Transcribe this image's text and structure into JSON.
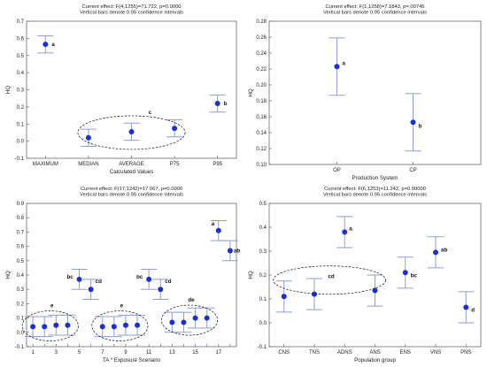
{
  "chart_data": [
    {
      "type": "scatter",
      "error_bars": "vertical, 0.95 confidence intervals",
      "header": [
        "Current effect: F(4,1255)=71.722, p=0.0000",
        "Vertical bars denote 0.95 confidence intervals"
      ],
      "xlabel": "Calculated Values",
      "ylabel": "HQ",
      "categories": [
        "MAXIMUM",
        "MEDIAN",
        "AVERAGE",
        "P75",
        "P95"
      ],
      "yticks": [
        -0.1,
        0.0,
        0.1,
        0.2,
        0.3,
        0.4,
        0.5,
        0.6,
        0.7
      ],
      "ylim": [
        -0.1,
        0.7
      ],
      "grid": false,
      "means": [
        0.565,
        0.02,
        0.055,
        0.075,
        0.22
      ],
      "lower": [
        0.515,
        -0.03,
        0.005,
        0.025,
        0.17
      ],
      "upper": [
        0.615,
        0.07,
        0.105,
        0.125,
        0.27
      ],
      "letters": [
        "a",
        "",
        "",
        "",
        "b"
      ],
      "group_annotations": [
        {
          "label": "c",
          "categories": [
            "MEDIAN",
            "AVERAGE",
            "P75"
          ]
        }
      ]
    },
    {
      "type": "scatter",
      "error_bars": "vertical, 0.95 confidence intervals",
      "header": [
        "Current effect: F(1,1258)=7.1843, p=.00745",
        "Vertical bars denote 0.95 confidence intervals"
      ],
      "xlabel": "Production System",
      "ylabel": "HQ",
      "categories": [
        "OP",
        "CP"
      ],
      "yticks": [
        0.1,
        0.12,
        0.14,
        0.16,
        0.18,
        0.2,
        0.22,
        0.24,
        0.26,
        0.28
      ],
      "ylim": [
        0.1,
        0.28
      ],
      "grid": false,
      "means": [
        0.223,
        0.153
      ],
      "lower": [
        0.187,
        0.117
      ],
      "upper": [
        0.259,
        0.189
      ],
      "letters": [
        "a",
        "b"
      ]
    },
    {
      "type": "scatter",
      "error_bars": "vertical, 0.95 confidence intervals",
      "header": [
        "Current effect: F(17,1242)=17.067, p=0.0000",
        "Vertical bars denote 0.95 confidence intervals"
      ],
      "xlabel": "TA * Exposure Scenario",
      "ylabel": "HQ",
      "categories": [
        "1",
        "2",
        "3",
        "4",
        "5",
        "6",
        "7",
        "8",
        "9",
        "10",
        "11",
        "12",
        "13",
        "14",
        "15",
        "16",
        "17",
        "18"
      ],
      "tick_labels": [
        "1",
        "",
        "3",
        "",
        "5",
        "",
        "7",
        "",
        "9",
        "",
        "11",
        "",
        "13",
        "",
        "15",
        "",
        "17",
        ""
      ],
      "yticks": [
        -0.1,
        0.0,
        0.1,
        0.2,
        0.3,
        0.4,
        0.5,
        0.6,
        0.7,
        0.8,
        0.9
      ],
      "ylim": [
        -0.1,
        0.9
      ],
      "grid": false,
      "means": [
        0.04,
        0.04,
        0.05,
        0.05,
        0.37,
        0.3,
        0.04,
        0.04,
        0.05,
        0.05,
        0.37,
        0.3,
        0.07,
        0.07,
        0.1,
        0.1,
        0.71,
        0.57
      ],
      "lower": [
        -0.03,
        -0.03,
        -0.02,
        -0.02,
        0.3,
        0.23,
        -0.03,
        -0.03,
        -0.02,
        -0.02,
        0.3,
        0.23,
        0.0,
        0.0,
        0.03,
        0.03,
        0.64,
        0.5
      ],
      "upper": [
        0.11,
        0.11,
        0.12,
        0.12,
        0.44,
        0.37,
        0.11,
        0.11,
        0.12,
        0.12,
        0.44,
        0.37,
        0.14,
        0.14,
        0.17,
        0.17,
        0.78,
        0.64
      ],
      "letters": [
        "",
        "",
        "",
        "",
        "bc",
        "cd",
        "",
        "",
        "",
        "",
        "bc",
        "cd",
        "",
        "",
        "",
        "",
        "a",
        "ab"
      ],
      "group_annotations": [
        {
          "label": "e",
          "categories": [
            "1",
            "2",
            "3",
            "4"
          ]
        },
        {
          "label": "e",
          "categories": [
            "7",
            "8",
            "9",
            "10"
          ]
        },
        {
          "label": "de",
          "categories": [
            "13",
            "14",
            "15",
            "16"
          ]
        }
      ]
    },
    {
      "type": "scatter",
      "error_bars": "vertical, 0.95 confidence intervals",
      "header": [
        "Current effect: F(6,1253)=11.242, p=0.00000",
        "Vertical bars denote 0.95 confidence intervals"
      ],
      "xlabel": "Population group",
      "ylabel": "HQ",
      "categories": [
        "CNS",
        "TNS",
        "ADNS",
        "ANS",
        "ENS",
        "VNS",
        "PNS"
      ],
      "yticks": [
        -0.1,
        0.0,
        0.1,
        0.2,
        0.3,
        0.4,
        0.5
      ],
      "ylim": [
        -0.1,
        0.5
      ],
      "grid": false,
      "means": [
        0.11,
        0.12,
        0.38,
        0.135,
        0.21,
        0.295,
        0.065
      ],
      "lower": [
        0.045,
        0.055,
        0.315,
        0.07,
        0.145,
        0.23,
        0.0
      ],
      "upper": [
        0.175,
        0.185,
        0.445,
        0.2,
        0.275,
        0.36,
        0.13
      ],
      "letters": [
        "",
        "",
        "a",
        "",
        "bc",
        "ab",
        "d"
      ],
      "group_annotations": [
        {
          "label": "cd",
          "categories": [
            "CNS",
            "TNS",
            "ADNS",
            "ANS"
          ]
        }
      ]
    }
  ]
}
